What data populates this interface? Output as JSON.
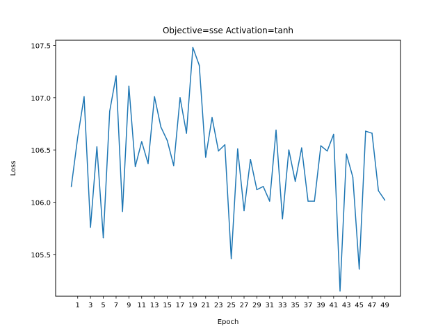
{
  "chart_data": {
    "type": "line",
    "title": "Objective=sse Activation=tanh",
    "xlabel": "Epoch",
    "ylabel": "Loss",
    "xlim": [
      -2.45,
      51.45
    ],
    "ylim": [
      105.1,
      107.55
    ],
    "xticks": [
      1,
      3,
      5,
      7,
      9,
      11,
      13,
      15,
      17,
      19,
      21,
      23,
      25,
      27,
      29,
      31,
      33,
      35,
      37,
      39,
      41,
      43,
      45,
      47,
      49
    ],
    "yticks": [
      {
        "value": 105.5,
        "label": "105.5"
      },
      {
        "value": 106.0,
        "label": "106.0"
      },
      {
        "value": 106.5,
        "label": "106.5"
      },
      {
        "value": 107.0,
        "label": "107.0"
      },
      {
        "value": 107.5,
        "label": "107.5"
      }
    ],
    "grid": false,
    "line_color": "#1f77b4",
    "series": [
      {
        "x": [
          0,
          1,
          2,
          3,
          4,
          5,
          6,
          7,
          8,
          9,
          10,
          11,
          12,
          13,
          14,
          15,
          16,
          17,
          18,
          19,
          20,
          21,
          22,
          23,
          24,
          25,
          26,
          27,
          28,
          29,
          30,
          31,
          32,
          33,
          34,
          35,
          36,
          37,
          38,
          39,
          40,
          41,
          42,
          43,
          44,
          45,
          46,
          47,
          48,
          49
        ],
        "values": [
          106.15,
          106.62,
          107.01,
          105.76,
          106.53,
          105.66,
          106.87,
          107.21,
          105.91,
          107.11,
          106.34,
          106.58,
          106.37,
          107.01,
          106.72,
          106.59,
          106.35,
          107.0,
          106.66,
          107.48,
          107.31,
          106.43,
          106.81,
          106.49,
          106.55,
          105.46,
          106.51,
          105.92,
          106.41,
          106.12,
          106.15,
          106.01,
          106.69,
          105.84,
          106.5,
          106.2,
          106.52,
          106.01,
          106.01,
          106.54,
          106.49,
          106.65,
          105.15,
          106.46,
          106.24,
          105.36,
          106.68,
          106.66,
          106.11,
          106.02
        ]
      }
    ]
  }
}
